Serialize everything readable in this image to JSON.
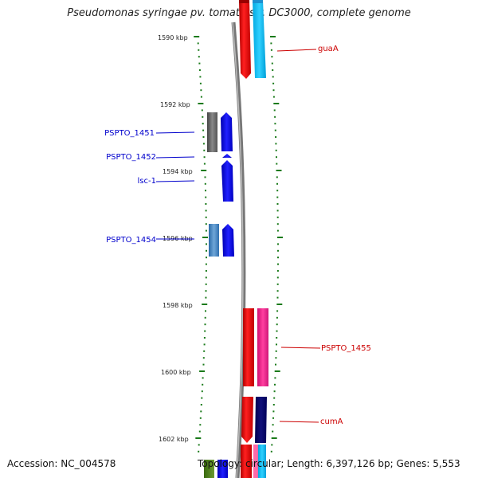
{
  "title": "Pseudomonas syringae pv. tomato str. DC3000, complete genome",
  "footer": {
    "accession": "Accession: NC_004578",
    "summary": "Topology: circular; Length: 6,397,126 bp; Genes: 5,553"
  },
  "kbp_ticks": [
    "1590 kbp",
    "1592 kbp",
    "1594 kbp",
    "1596 kbp",
    "1598 kbp",
    "1600 kbp",
    "1602 kbp"
  ],
  "gene_labels": [
    {
      "text": "guaA",
      "color": "#cc0000",
      "side": "right"
    },
    {
      "text": "PSPTO_1451",
      "color": "#0000cc",
      "side": "left"
    },
    {
      "text": "PSPTO_1452",
      "color": "#0000cc",
      "side": "left"
    },
    {
      "text": "lsc-1",
      "color": "#0000cc",
      "side": "left"
    },
    {
      "text": "PSPTO_1454",
      "color": "#0000cc",
      "side": "left"
    },
    {
      "text": "PSPTO_1455",
      "color": "#cc0000",
      "side": "right"
    },
    {
      "text": "cumA",
      "color": "#cc0000",
      "side": "right"
    }
  ],
  "colors": {
    "forward_strand": "#ff0000",
    "reverse_strand": "#0000ff",
    "tick": "#1a7a1a",
    "backbone": "#888888"
  }
}
